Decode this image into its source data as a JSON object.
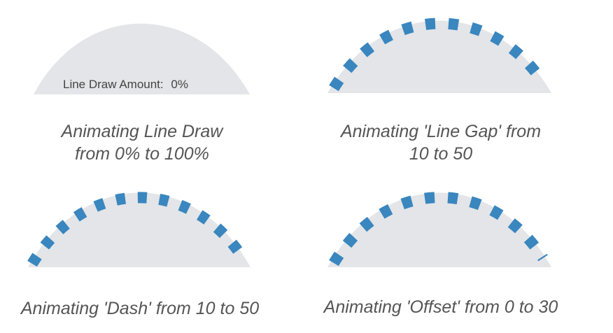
{
  "colors": {
    "hill_fill": "#e3e5e8",
    "dash_stroke": "#3a86bf",
    "caption_text": "#555555",
    "label_text": "#444444"
  },
  "panels": [
    {
      "id": "line-draw",
      "caption_line1": "Animating Line Draw",
      "caption_line2": "from 0% to 100%",
      "amount_label": "Line Draw Amount:",
      "amount_value": "0%",
      "draw_fraction": 0
    },
    {
      "id": "line-gap",
      "caption_line1": "Animating 'Line Gap' from",
      "caption_line2": "10 to 50"
    },
    {
      "id": "dash",
      "caption_line1": "Animating 'Dash' from 10 to 50"
    },
    {
      "id": "offset",
      "caption_line1": "Animating 'Offset' from 0 to 30"
    }
  ]
}
